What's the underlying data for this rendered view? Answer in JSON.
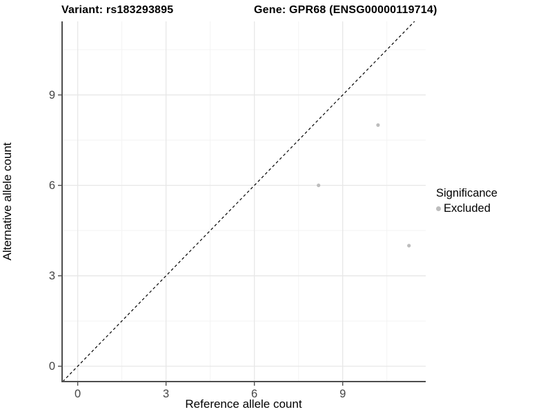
{
  "title": {
    "variant": "Variant: rs183293895",
    "gene": "Gene: GPR68 (ENSG00000119714)"
  },
  "legend": {
    "title": "Significance",
    "items": [
      {
        "label": "Excluded",
        "color": "#bdbdbd"
      }
    ]
  },
  "chart_data": {
    "type": "scatter",
    "title": "Variant: rs183293895   Gene: GPR68 (ENSG00000119714)",
    "xlabel": "Reference allele count",
    "ylabel": "Alternative allele count",
    "xlim": [
      -0.53,
      11.82
    ],
    "ylim": [
      -0.51,
      11.44
    ],
    "xticks": [
      0,
      3,
      6,
      9
    ],
    "yticks": [
      0,
      3,
      6,
      9
    ],
    "minor_xticks": [
      1.5,
      4.5,
      7.5,
      10.5
    ],
    "minor_yticks": [
      1.5,
      4.5,
      7.5,
      10.5
    ],
    "grid": true,
    "legend_position": "right",
    "series": [
      {
        "name": "Excluded",
        "color": "#bdbdbd",
        "points": [
          {
            "x": 8,
            "y": 6,
            "plot_x": 8.18
          },
          {
            "x": 10,
            "y": 8,
            "plot_x": 10.2
          },
          {
            "x": 11,
            "y": 4,
            "plot_x": 11.25
          }
        ]
      }
    ],
    "reference_line": {
      "type": "abline",
      "slope": 1,
      "intercept": 0,
      "style": "dashed",
      "color": "#000000"
    }
  },
  "colors": {
    "background": "#ffffff",
    "grid_major": "#e7e7e7",
    "grid_minor": "#f3f3f3",
    "axis_line": "#4d4d4d",
    "tick_label": "#454545",
    "point": "#bdbdbd"
  }
}
